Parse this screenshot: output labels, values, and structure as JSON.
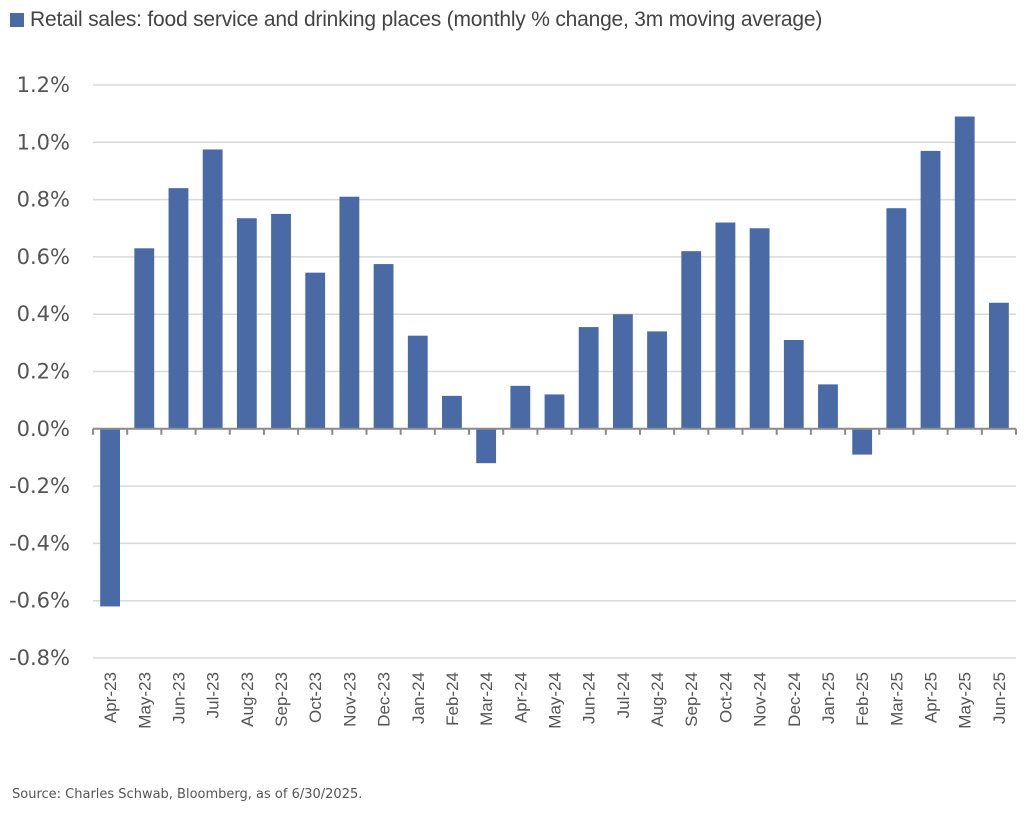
{
  "chart_data": {
    "type": "bar",
    "title": "",
    "legend": [
      {
        "label": "Retail sales: food service and drinking places (monthly % change, 3m moving average)",
        "color": "#4a6aa5"
      }
    ],
    "legend_position": "top-left",
    "xlabel": "",
    "ylabel": "",
    "ylim": [
      -0.8,
      1.2
    ],
    "yticks": [
      1.2,
      1.0,
      0.8,
      0.6,
      0.4,
      0.2,
      0.0,
      -0.2,
      -0.4,
      -0.6,
      -0.8
    ],
    "ytick_labels": [
      "1.2%",
      "1.0%",
      "0.8%",
      "0.6%",
      "0.4%",
      "0.2%",
      "0.0%",
      "-0.2%",
      "-0.4%",
      "-0.6%",
      "-0.8%"
    ],
    "grid": true,
    "categories": [
      "Apr-23",
      "May-23",
      "Jun-23",
      "Jul-23",
      "Aug-23",
      "Sep-23",
      "Oct-23",
      "Nov-23",
      "Dec-23",
      "Jan-24",
      "Feb-24",
      "Mar-24",
      "Apr-24",
      "May-24",
      "Jun-24",
      "Jul-24",
      "Aug-24",
      "Sep-24",
      "Oct-24",
      "Nov-24",
      "Dec-24",
      "Jan-25",
      "Feb-25",
      "Mar-25",
      "Apr-25",
      "May-25",
      "Jun-25"
    ],
    "series": [
      {
        "name": "Retail sales: food service and drinking places (monthly % change, 3m moving average)",
        "color": "#4a6aa5",
        "values": [
          -0.62,
          0.63,
          0.84,
          0.975,
          0.735,
          0.75,
          0.545,
          0.81,
          0.575,
          0.325,
          0.115,
          -0.12,
          0.15,
          0.12,
          0.355,
          0.4,
          0.34,
          0.62,
          0.72,
          0.7,
          0.31,
          0.155,
          -0.09,
          0.77,
          0.97,
          1.09,
          0.44
        ]
      }
    ],
    "source": "Source: Charles Schwab, Bloomberg, as of 6/30/2025."
  }
}
